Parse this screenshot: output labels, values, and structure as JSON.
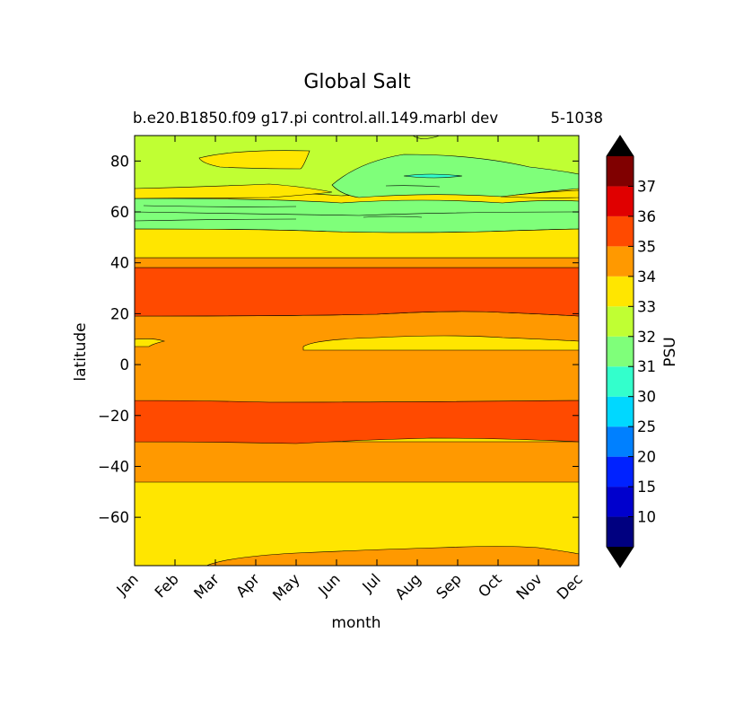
{
  "chart_data": {
    "type": "contour",
    "title": "Global Salt",
    "subtitle_left": "b.e20.B1850.f09 g17.pi control.all.149.marbl dev",
    "subtitle_right": "5-1038",
    "xlabel": "month",
    "ylabel": "latitude",
    "x_categories": [
      "Jan",
      "Feb",
      "Mar",
      "Apr",
      "May",
      "Jun",
      "Jul",
      "Aug",
      "Sep",
      "Oct",
      "Nov",
      "Dec"
    ],
    "y_ticks": [
      80,
      60,
      40,
      20,
      0,
      -20,
      -40,
      -60
    ],
    "ylim": [
      -79,
      90
    ],
    "colorbar": {
      "label": "PSU",
      "tick_labels": [
        "10",
        "15",
        "20",
        "25",
        "30",
        "31",
        "32",
        "33",
        "34",
        "35",
        "36",
        "37"
      ],
      "levels": [
        5,
        10,
        15,
        20,
        25,
        30,
        31,
        32,
        33,
        34,
        35,
        36,
        37,
        38
      ],
      "colors": [
        "#000080",
        "#0000cd",
        "#0022ff",
        "#0080ff",
        "#00d8ff",
        "#33ffcc",
        "#7fff7a",
        "#c0ff33",
        "#ffe600",
        "#ff9900",
        "#ff4a00",
        "#e00000",
        "#800000"
      ],
      "extend_colors": {
        "min": "#000000",
        "max": "#000000"
      }
    },
    "bands": [
      {
        "lat_min": -79,
        "lat_max": -45,
        "salinity_range": "33-34"
      },
      {
        "lat_min": -45,
        "lat_max": -30,
        "salinity_range": "34-35"
      },
      {
        "lat_min": -30,
        "lat_max": -14,
        "salinity_range": "35-36"
      },
      {
        "lat_min": -14,
        "lat_max": 19,
        "salinity_range": "34-35"
      },
      {
        "lat_min": 19,
        "lat_max": 38,
        "salinity_range": "35-36"
      },
      {
        "lat_min": 38,
        "lat_max": 42,
        "salinity_range": "34-35"
      },
      {
        "lat_min": 42,
        "lat_max": 54,
        "salinity_range": "33-34"
      },
      {
        "lat_min": 54,
        "lat_max": 64,
        "salinity_range": "31-32"
      },
      {
        "lat_min": 64,
        "lat_max": 90,
        "salinity_range": "32-33"
      }
    ]
  }
}
